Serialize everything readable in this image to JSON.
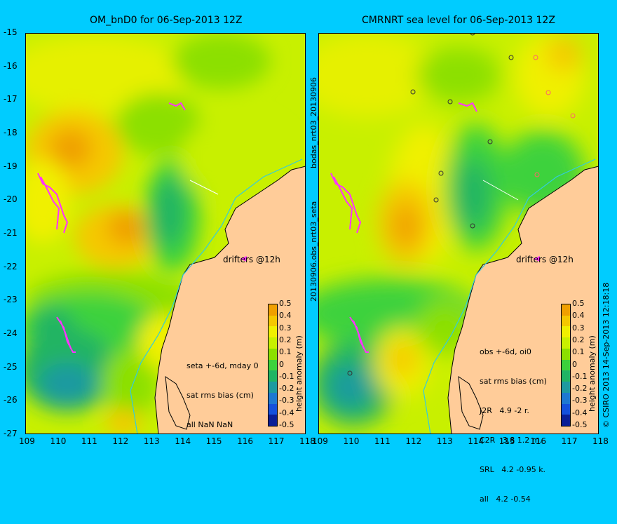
{
  "left_panel": {
    "title": "OM_bnD0 for 06-Sep-2013 12Z",
    "stats_lines": [
      "seta +-6d, mday 0",
      "sat rms bias (cm)",
      "all NaN NaN"
    ],
    "drifters_label": "drifters @12h"
  },
  "right_panel": {
    "title": "CMRNRT sea level  for 06-Sep-2013 12Z",
    "stats_lines": [
      "obs +-6d, oi0",
      "sat rms bias (cm)",
      "J2R   4.9 -2 r.",
      "C2R   3.8 1.2 m.",
      "SRL   4.2 -0.95 k.",
      "all   4.2 -0.54"
    ],
    "drifters_label": "drifters @12h"
  },
  "side_text_left": "20130906.obs_nrt03_seta",
  "side_text_left_top": "bodas_nrt03_20130906",
  "side_text_right": "© CSIRO 2013  14-Sep-2013 12:18:18",
  "colorbar": {
    "label": "height anomaly (m)",
    "ticks": [
      "0.5",
      "0.4",
      "0.3",
      "0.2",
      "0.1",
      "0",
      "-0.1",
      "-0.2",
      "-0.3",
      "-0.4",
      "-0.5"
    ],
    "colors": [
      "#f0a000",
      "#f5c800",
      "#f0f000",
      "#c8f000",
      "#8ce000",
      "#3cd23c",
      "#20b464",
      "#1e9aa0",
      "#1e78d2",
      "#1450dc",
      "#0a1e96"
    ]
  },
  "colors": {
    "background": "#00ccff",
    "land": "#ffcc99",
    "coast": "#000000",
    "drifter": "#ff33ff",
    "river": "#33ccdd"
  },
  "chart_data": {
    "type": "heatmap",
    "x_axis": {
      "ticks": [
        "109",
        "110",
        "111",
        "112",
        "113",
        "114",
        "115",
        "116",
        "117",
        "118"
      ],
      "range": [
        109,
        118
      ]
    },
    "y_axis": {
      "ticks": [
        "-15",
        "-16",
        "-17",
        "-18",
        "-19",
        "-20",
        "-21",
        "-22",
        "-23",
        "-24",
        "-25",
        "-26",
        "-27"
      ],
      "range": [
        -27,
        -15
      ]
    },
    "value_range": [
      -0.5,
      0.5
    ],
    "panels": [
      "OM_bnD0 for 06-Sep-2013 12Z",
      "CMRNRT sea level  for 06-Sep-2013 12Z"
    ]
  }
}
